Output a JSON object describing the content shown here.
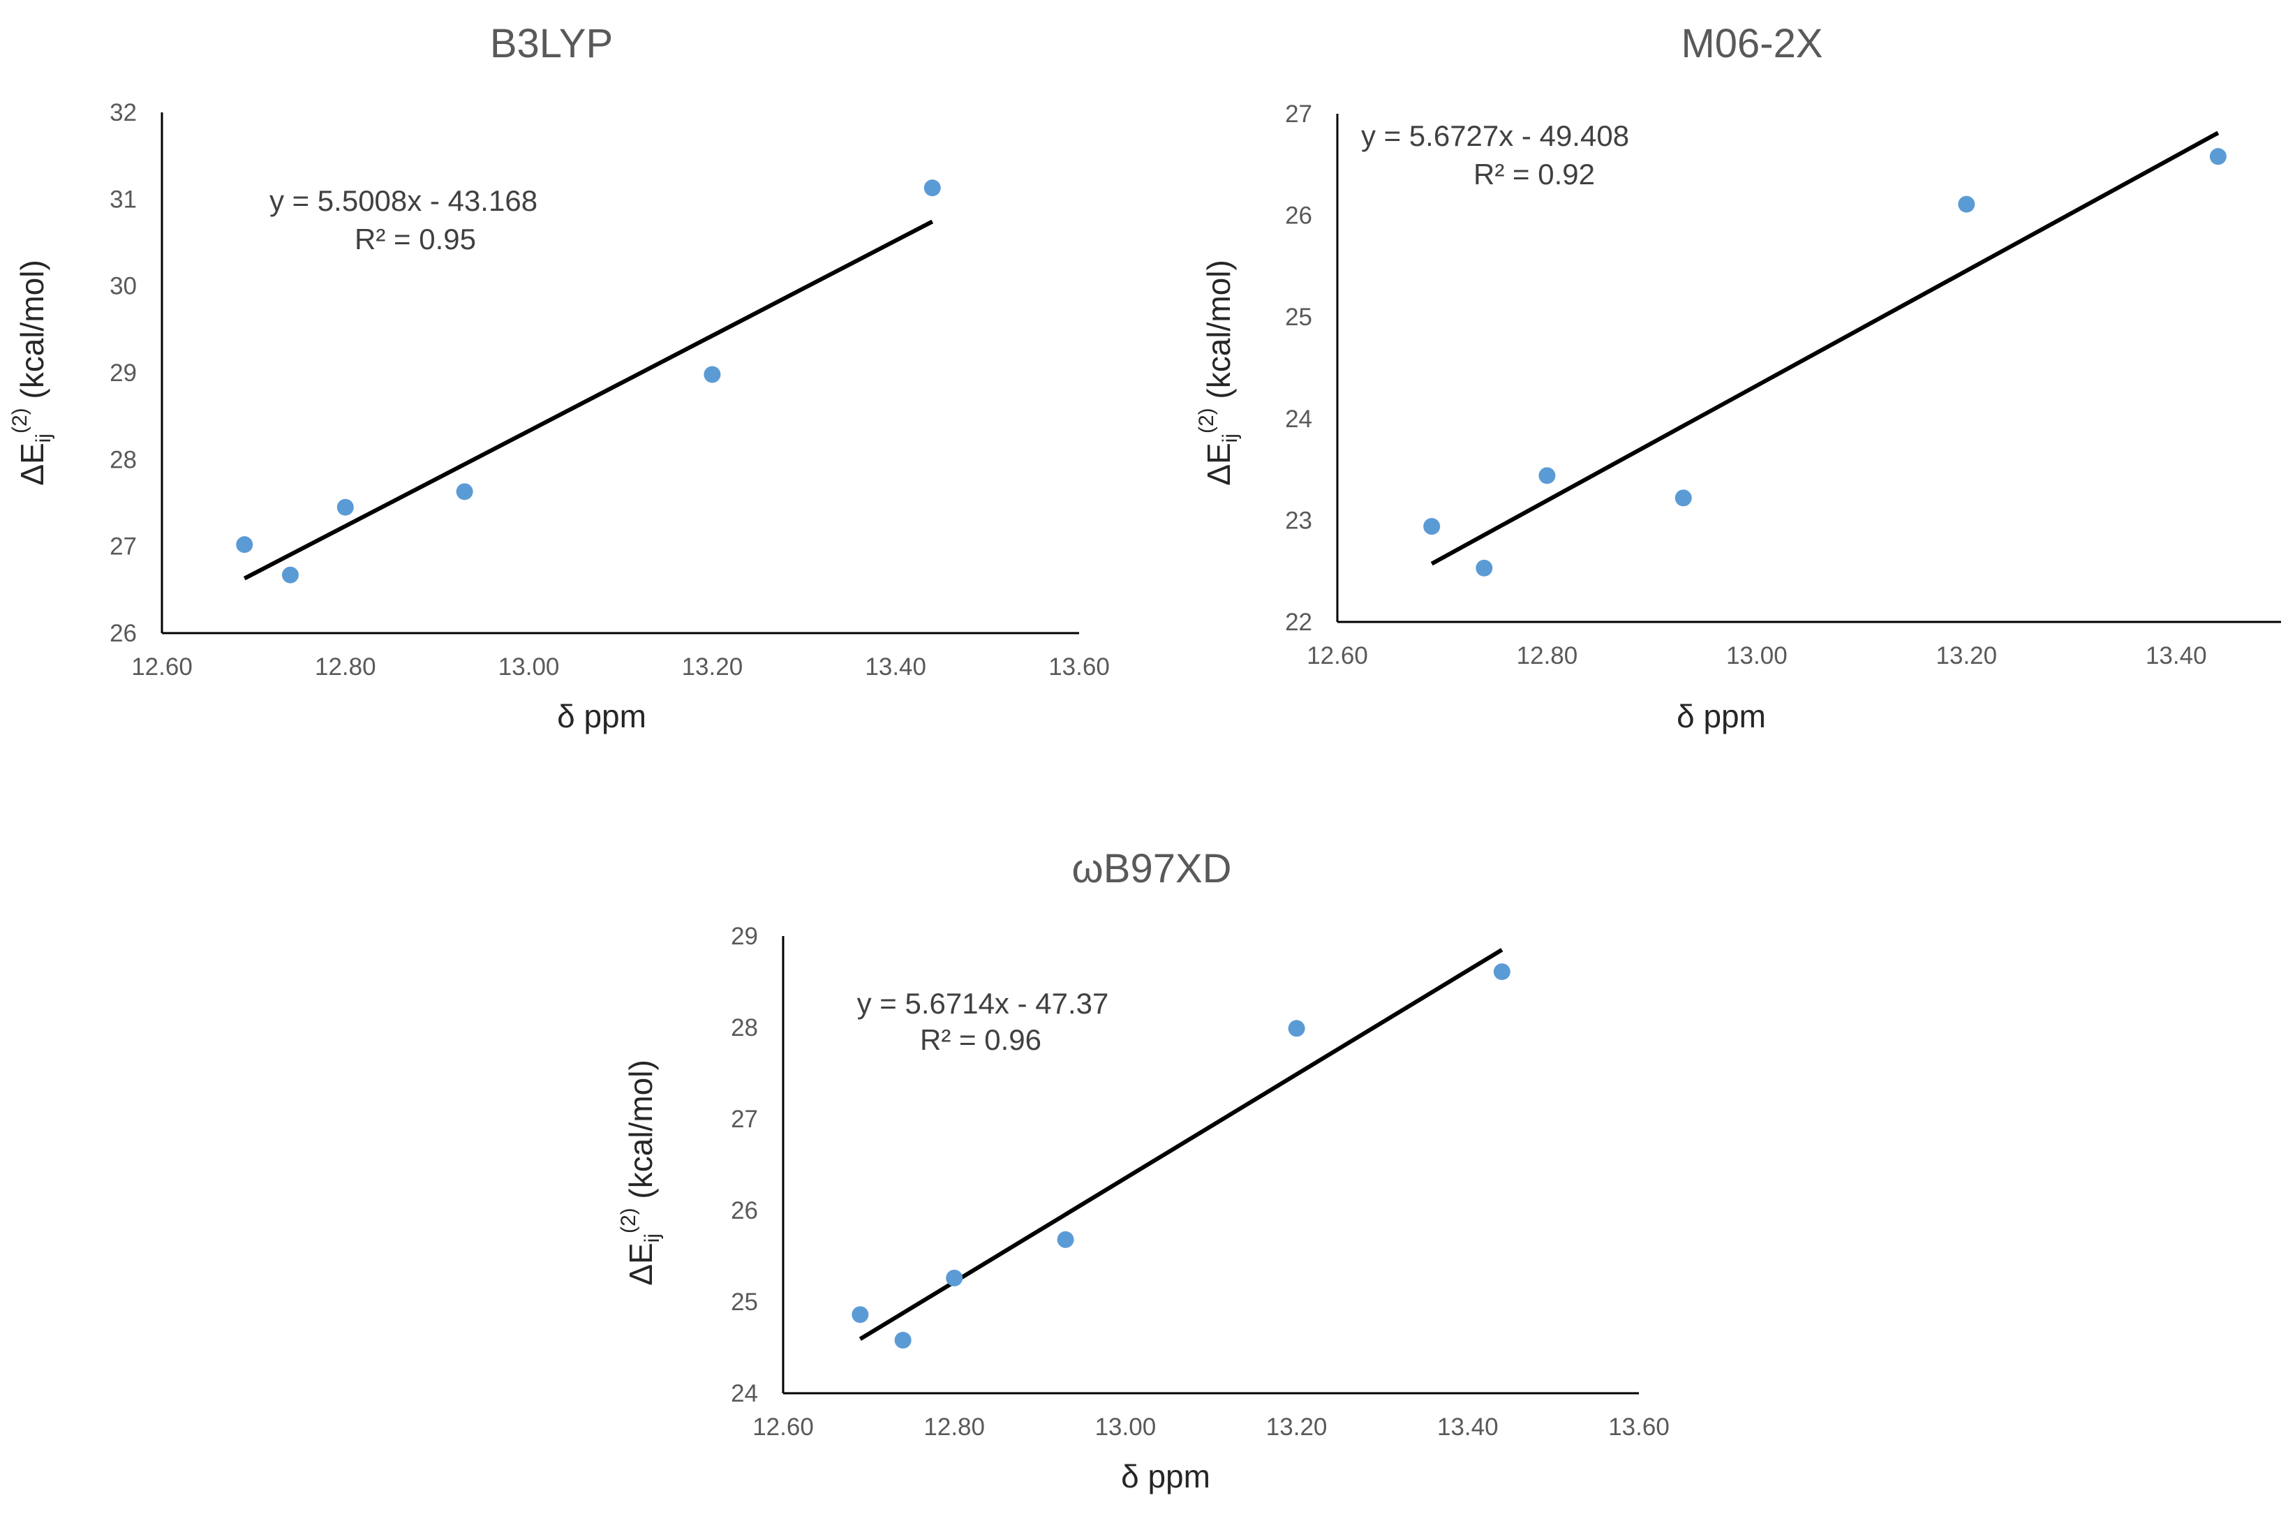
{
  "figure_title": "",
  "chart_data": [
    {
      "type": "scatter",
      "title": "B3LYP",
      "xlabel": "δ ppm",
      "ylabel": {
        "main": "ΔE",
        "sub": "ij",
        "sup": "(2)",
        "rest": " (kcal/mol)"
      },
      "xlim": [
        12.6,
        13.6
      ],
      "ylim": [
        26,
        32
      ],
      "xticks": [
        "12.60",
        "12.80",
        "13.00",
        "13.20",
        "13.40",
        "13.60"
      ],
      "yticks": [
        "26",
        "27",
        "28",
        "29",
        "30",
        "31",
        "32"
      ],
      "x": [
        12.69,
        12.74,
        12.8,
        12.93,
        13.2,
        13.44
      ],
      "y": [
        27.02,
        26.67,
        27.45,
        27.63,
        28.98,
        31.13
      ],
      "marker_color": "#5B9BD5",
      "trendline": {
        "x": [
          12.69,
          13.44
        ]
      },
      "equation": "y = 5.5008x - 43.168",
      "r2": "R² = 0.95"
    },
    {
      "type": "scatter",
      "title": "M06-2X",
      "xlabel": "δ ppm",
      "ylabel": {
        "main": "ΔE",
        "sub": "ij",
        "sup": "(2)",
        "rest": " (kcal/mol)"
      },
      "xlim": [
        12.6,
        13.5
      ],
      "ylim": [
        22,
        27
      ],
      "xticks": [
        "12.60",
        "12.80",
        "13.00",
        "13.20",
        "13.40"
      ],
      "yticks": [
        "22",
        "23",
        "24",
        "25",
        "26",
        "27"
      ],
      "x": [
        12.69,
        12.74,
        12.8,
        12.93,
        13.2,
        13.44
      ],
      "y": [
        22.94,
        22.53,
        23.44,
        23.22,
        26.11,
        26.58
      ],
      "marker_color": "#5B9BD5",
      "trendline": {
        "x": [
          12.69,
          13.44
        ]
      },
      "equation": "y = 5.6727x - 49.408",
      "r2": "R² = 0.92"
    },
    {
      "type": "scatter",
      "title": "ωB97XD",
      "xlabel": "δ ppm",
      "ylabel": {
        "main": "ΔE",
        "sub": "ij",
        "sup": "(2)",
        "rest": " (kcal/mol)"
      },
      "xlim": [
        12.6,
        13.6
      ],
      "ylim": [
        24,
        29
      ],
      "xticks": [
        "12.60",
        "12.80",
        "13.00",
        "13.20",
        "13.40",
        "13.60"
      ],
      "yticks": [
        "24",
        "25",
        "26",
        "27",
        "28",
        "29"
      ],
      "x": [
        12.69,
        12.74,
        12.8,
        12.93,
        13.2,
        13.44
      ],
      "y": [
        24.86,
        24.58,
        25.26,
        25.68,
        27.99,
        28.61
      ],
      "marker_color": "#5B9BD5",
      "trendline": {
        "x": [
          12.69,
          13.44
        ]
      },
      "equation": "y = 5.6714x - 47.37",
      "r2": "R² = 0.96"
    }
  ]
}
